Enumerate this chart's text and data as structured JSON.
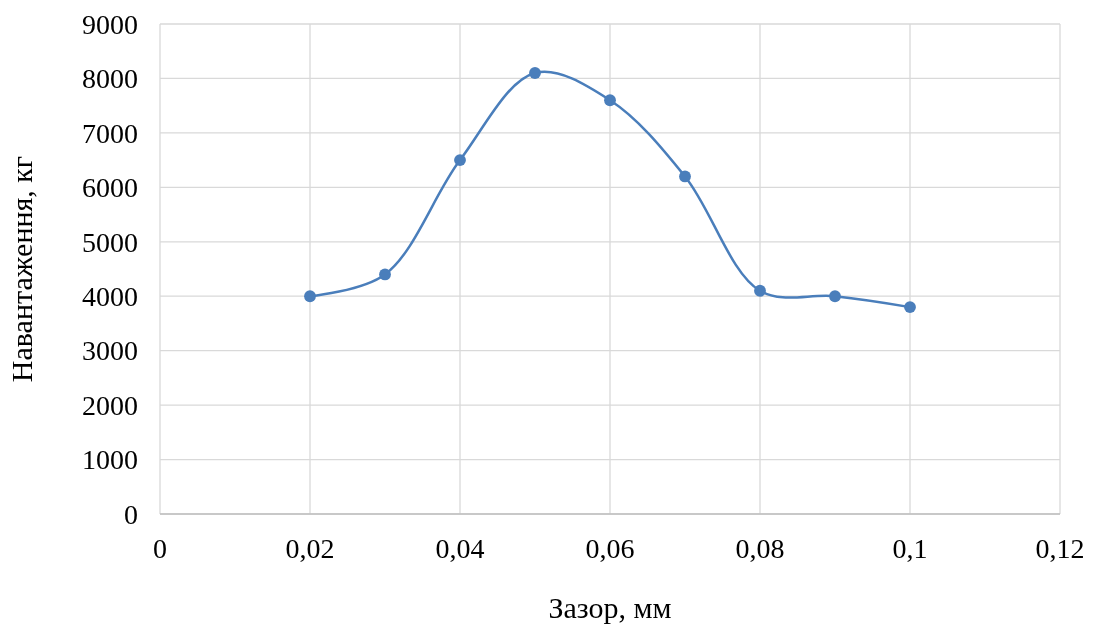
{
  "chart_data": {
    "type": "line",
    "xlabel": "Зазор, мм",
    "ylabel": "Навантаження, кг",
    "x": [
      0.02,
      0.03,
      0.04,
      0.05,
      0.06,
      0.07,
      0.08,
      0.09,
      0.1
    ],
    "series": [
      {
        "color": "#4a7ebb",
        "values": [
          4000,
          4400,
          6500,
          8100,
          7600,
          6200,
          4100,
          4000,
          3800
        ]
      }
    ],
    "xlim": [
      0,
      0.12
    ],
    "xticks": [
      0,
      {
        "value": 0.02,
        "label": "0,02"
      },
      {
        "value": 0.04,
        "label": "0,04"
      },
      {
        "value": 0.06,
        "label": "0,06"
      },
      {
        "value": 0.08,
        "label": "0,08"
      },
      {
        "value": 0.1,
        "label": "0,1"
      },
      {
        "value": 0.12,
        "label": "0,12"
      }
    ],
    "ylim": [
      0,
      9000
    ],
    "yticks": [
      0,
      1000,
      2000,
      3000,
      4000,
      5000,
      6000,
      7000,
      8000,
      9000
    ],
    "grid": true,
    "marker": "circle",
    "line_style": "solid"
  }
}
